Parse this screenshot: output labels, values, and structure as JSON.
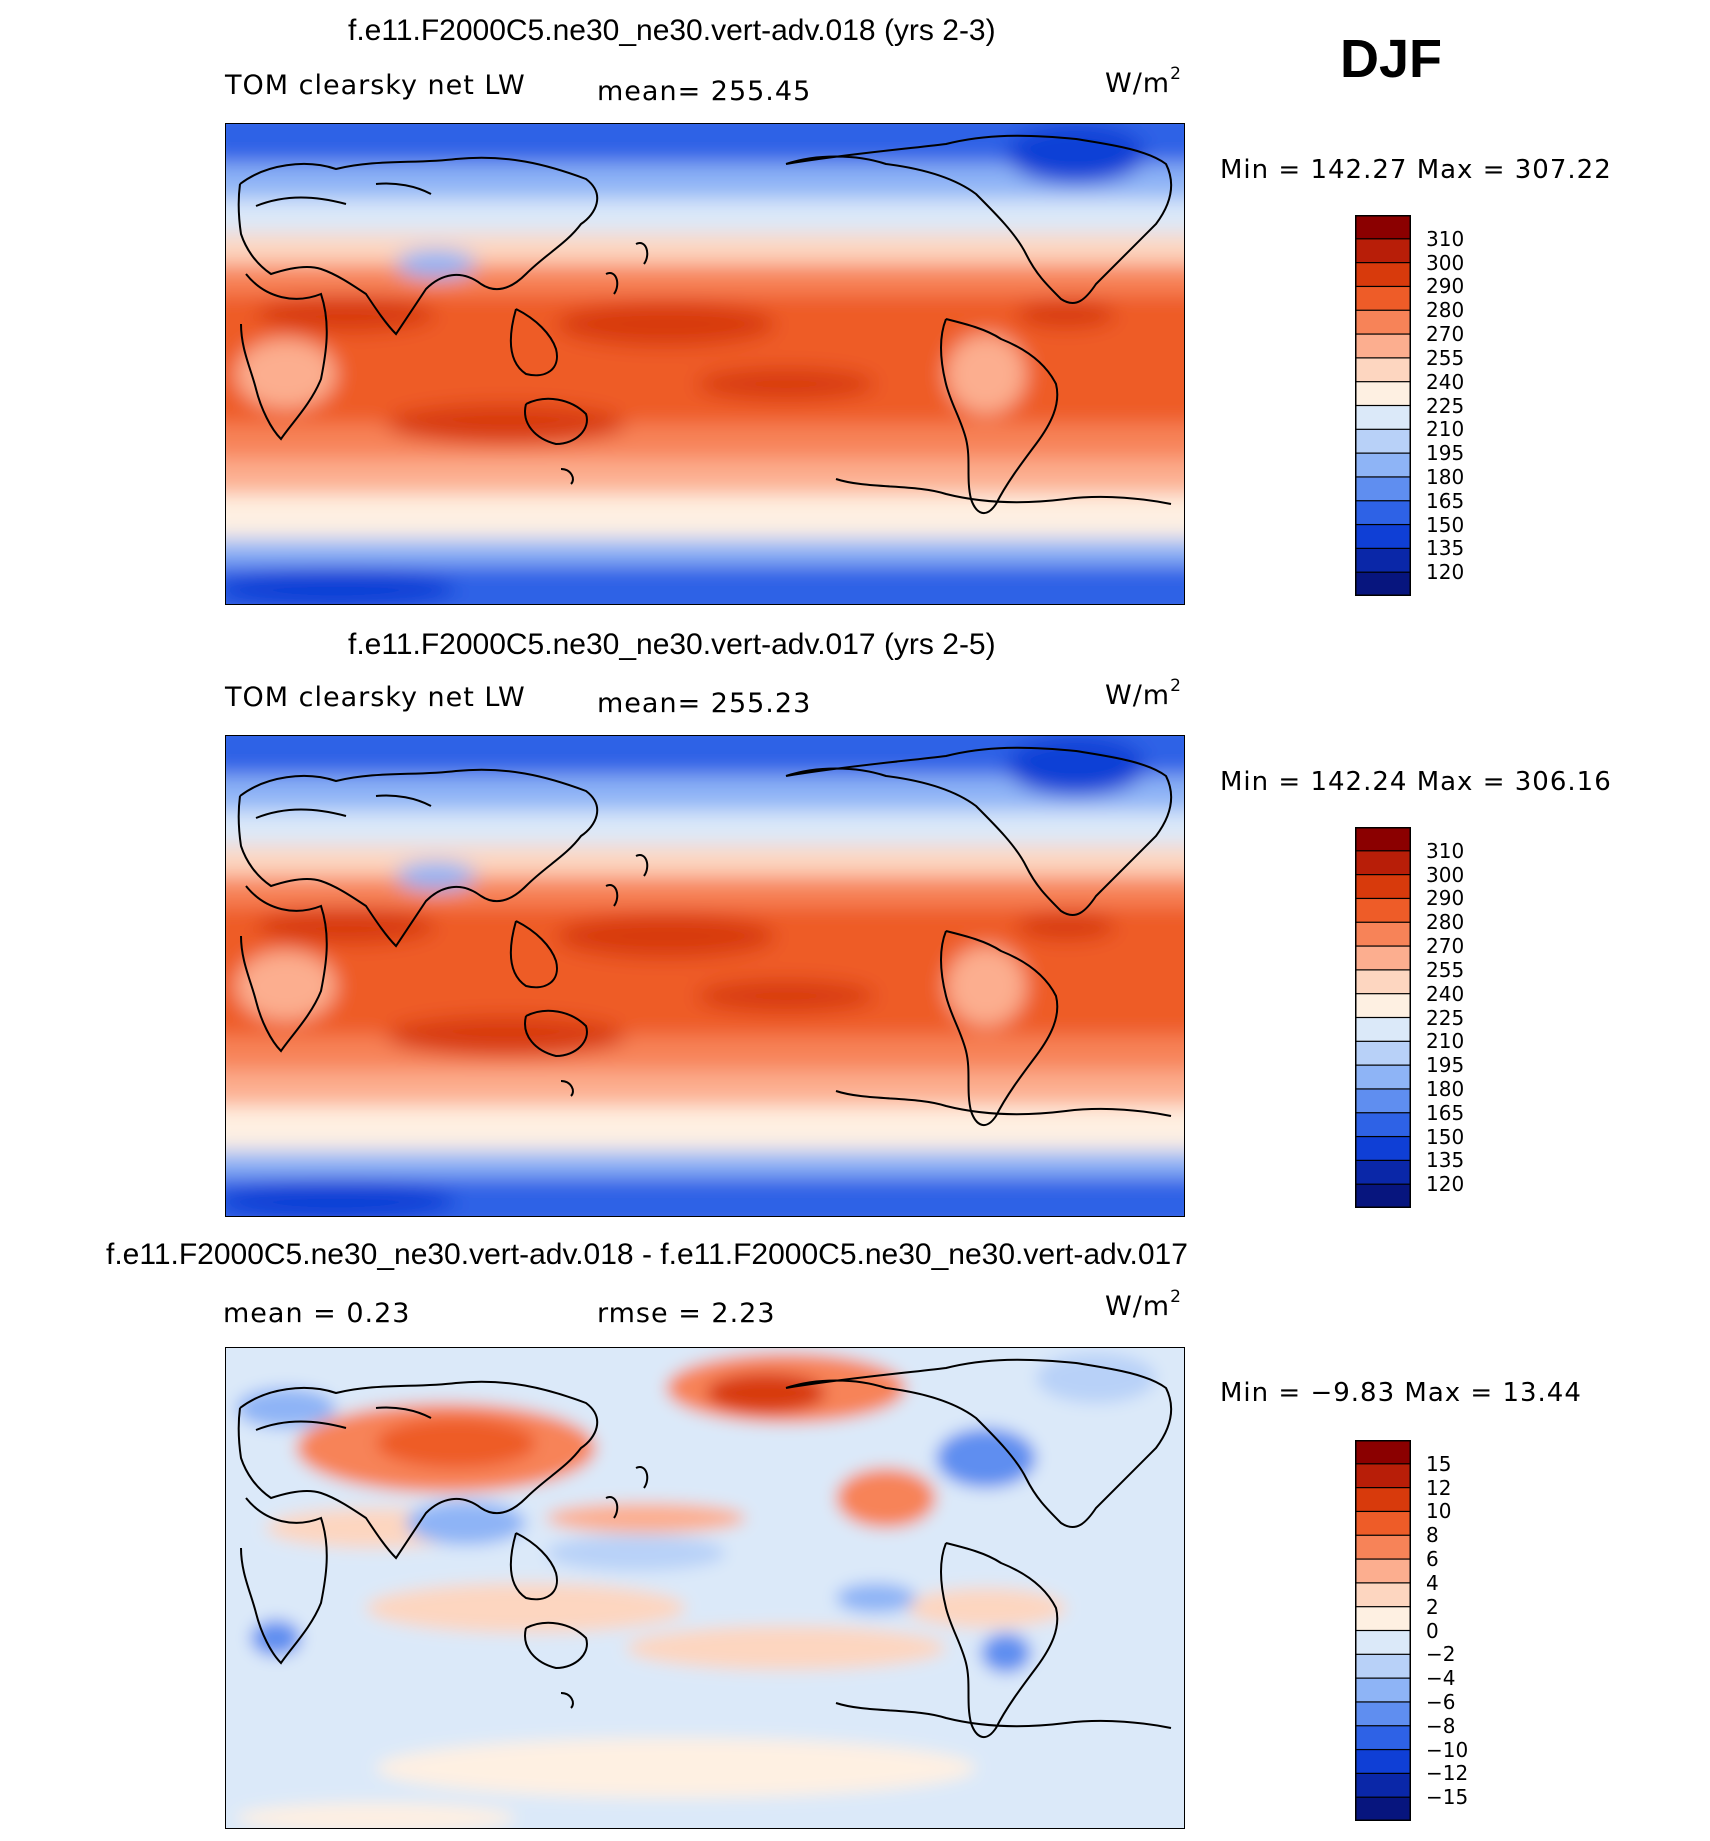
{
  "season": "DJF",
  "panels": [
    {
      "title": "f.e11.F2000C5.ne30_ne30.vert-adv.018 (yrs 2-3)",
      "variable": "TOM clearsky net LW",
      "stat_text": "mean=  255.45",
      "units_base": "W/m",
      "units_exp": "2",
      "minmax_text": "Min  =  142.27  Max  =  307.22",
      "colorbar_colors": [
        "#8b0000",
        "#b81e08",
        "#d83a0c",
        "#ee5c28",
        "#f78358",
        "#fcae8f",
        "#fdd6c0",
        "#fef0e2",
        "#dbe9f9",
        "#b8d1f8",
        "#8eb4f6",
        "#5f8ef0",
        "#2e62e6",
        "#0f3fd6",
        "#0a27a8",
        "#07157e"
      ],
      "colorbar_labels": [
        "310",
        "300",
        "290",
        "280",
        "270",
        "255",
        "240",
        "225",
        "210",
        "195",
        "180",
        "165",
        "150",
        "135",
        "120"
      ]
    },
    {
      "title": "f.e11.F2000C5.ne30_ne30.vert-adv.017 (yrs 2-5)",
      "variable": "TOM clearsky net LW",
      "stat_text": "mean=  255.23",
      "units_base": "W/m",
      "units_exp": "2",
      "minmax_text": "Min  =  142.24  Max  =  306.16",
      "colorbar_colors": [
        "#8b0000",
        "#b81e08",
        "#d83a0c",
        "#ee5c28",
        "#f78358",
        "#fcae8f",
        "#fdd6c0",
        "#fef0e2",
        "#dbe9f9",
        "#b8d1f8",
        "#8eb4f6",
        "#5f8ef0",
        "#2e62e6",
        "#0f3fd6",
        "#0a27a8",
        "#07157e"
      ],
      "colorbar_labels": [
        "310",
        "300",
        "290",
        "280",
        "270",
        "255",
        "240",
        "225",
        "210",
        "195",
        "180",
        "165",
        "150",
        "135",
        "120"
      ]
    },
    {
      "title": "f.e11.F2000C5.ne30_ne30.vert-adv.018 - f.e11.F2000C5.ne30_ne30.vert-adv.017",
      "mean_text": "mean =      0.23",
      "rmse_text": "rmse =      2.23",
      "units_base": "W/m",
      "units_exp": "2",
      "minmax_text": "Min  =    −9.83  Max  =    13.44",
      "colorbar_colors": [
        "#8b0000",
        "#b81e08",
        "#d83a0c",
        "#ee5c28",
        "#f78358",
        "#fcae8f",
        "#fdd6c0",
        "#fef0e2",
        "#dbe9f9",
        "#b8d1f8",
        "#8eb4f6",
        "#5f8ef0",
        "#2e62e6",
        "#0f3fd6",
        "#0a27a8",
        "#07157e"
      ],
      "colorbar_labels": [
        "15",
        "12",
        "10",
        "8",
        "6",
        "4",
        "2",
        "0",
        "−2",
        "−4",
        "−6",
        "−8",
        "−10",
        "−12",
        "−15"
      ]
    }
  ]
}
